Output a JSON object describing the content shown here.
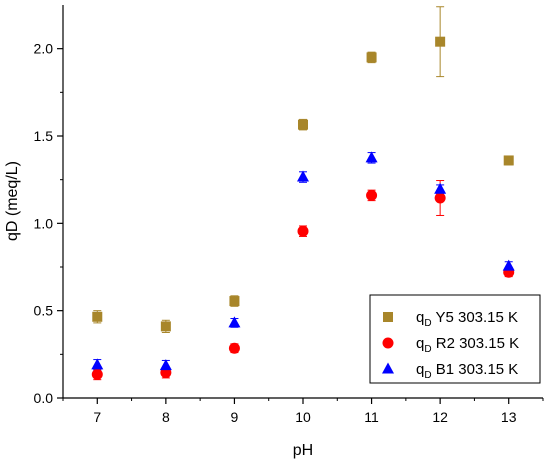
{
  "chart_data": {
    "type": "scatter",
    "xlabel": "pH",
    "ylabel": "qD (meq/L)",
    "xlim": [
      6.5,
      13.5
    ],
    "ylim": [
      0.0,
      2.25
    ],
    "x_ticks": [
      "7",
      "8",
      "9",
      "10",
      "11",
      "12",
      "13"
    ],
    "y_ticks": [
      "0.0",
      "0.5",
      "1.0",
      "1.5",
      "2.0"
    ],
    "x": [
      7,
      8,
      9,
      10,
      11,
      12,
      13
    ],
    "grid": false,
    "legend_position": "bottom-right",
    "series": [
      {
        "legend_main": "q",
        "legend_sub": "D",
        "legend_rest": " Y5 303.15 K",
        "marker": "square",
        "color": "#A8862A",
        "values": [
          0.465,
          0.41,
          0.555,
          1.565,
          1.95,
          2.04,
          1.36
        ],
        "errors": [
          0.035,
          0.035,
          0.03,
          0.03,
          0.03,
          0.2,
          0.025
        ]
      },
      {
        "legend_main": "q",
        "legend_sub": "D",
        "legend_rest": " R2 303.15 K",
        "marker": "circle",
        "color": "#FF0000",
        "values": [
          0.135,
          0.145,
          0.285,
          0.955,
          1.16,
          1.145,
          0.72
        ],
        "errors": [
          0.03,
          0.03,
          0.025,
          0.03,
          0.03,
          0.1,
          0.025
        ]
      },
      {
        "legend_main": "q",
        "legend_sub": "D",
        "legend_rest": " B1 303.15 K",
        "marker": "triangle",
        "color": "#0000FF",
        "values": [
          0.19,
          0.185,
          0.43,
          1.265,
          1.375,
          1.195,
          0.755
        ],
        "errors": [
          0.03,
          0.03,
          0.025,
          0.03,
          0.03,
          0.025,
          0.025
        ]
      }
    ]
  }
}
